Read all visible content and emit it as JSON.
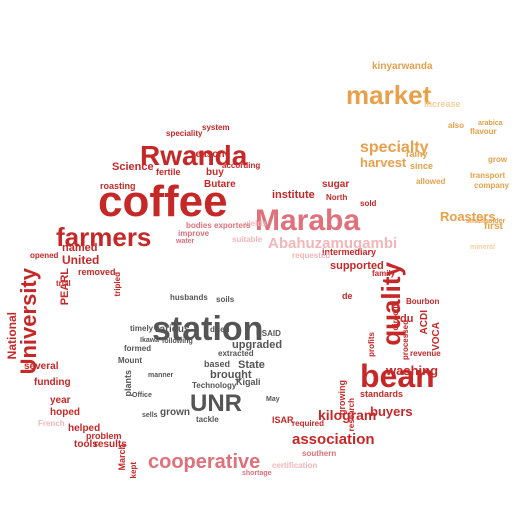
{
  "palette": {
    "red": "#c62828",
    "pink": "#e0707a",
    "lightpink": "#f2b6b8",
    "orange": "#e8a04a",
    "lightorange": "#f6cf9b",
    "gray": "#555555",
    "lightgray": "#8a8a8a"
  },
  "words": [
    {
      "text": "coffee",
      "color": "red"
    },
    {
      "text": "Maraba",
      "color": "pink"
    },
    {
      "text": "Rwanda",
      "color": "red"
    },
    {
      "text": "farmers",
      "color": "red"
    },
    {
      "text": "station",
      "color": "gray"
    },
    {
      "text": "bean",
      "color": "red"
    },
    {
      "text": "quality",
      "color": "red"
    },
    {
      "text": "market",
      "color": "orange"
    },
    {
      "text": "University",
      "color": "red"
    },
    {
      "text": "cooperative",
      "color": "pink"
    },
    {
      "text": "UNR",
      "color": "gray"
    },
    {
      "text": "Abahuzamugambi",
      "color": "lightpink"
    },
    {
      "text": "kinyarwanda",
      "color": "orange"
    },
    {
      "text": "specialty",
      "color": "orange"
    },
    {
      "text": "harvest",
      "color": "orange"
    },
    {
      "text": "Roasters",
      "color": "orange"
    },
    {
      "text": "washing",
      "color": "red"
    },
    {
      "text": "kilogram",
      "color": "red"
    },
    {
      "text": "buyers",
      "color": "red"
    },
    {
      "text": "association",
      "color": "red"
    },
    {
      "text": "supported",
      "color": "red"
    },
    {
      "text": "intermediary",
      "color": "red"
    },
    {
      "text": "institute",
      "color": "red"
    },
    {
      "text": "sugar",
      "color": "red"
    },
    {
      "text": "Science",
      "color": "red"
    },
    {
      "text": "season",
      "color": "red"
    },
    {
      "text": "fertile",
      "color": "red"
    },
    {
      "text": "roasting",
      "color": "red"
    },
    {
      "text": "Butare",
      "color": "red"
    },
    {
      "text": "buy",
      "color": "red"
    },
    {
      "text": "named",
      "color": "red"
    },
    {
      "text": "United",
      "color": "red"
    },
    {
      "text": "National",
      "color": "red"
    },
    {
      "text": "PEARL",
      "color": "red"
    },
    {
      "text": "funding",
      "color": "red"
    },
    {
      "text": "year",
      "color": "red"
    },
    {
      "text": "hoped",
      "color": "red"
    },
    {
      "text": "helped",
      "color": "red"
    },
    {
      "text": "problem",
      "color": "red"
    },
    {
      "text": "tools",
      "color": "red"
    },
    {
      "text": "results",
      "color": "red"
    },
    {
      "text": "several",
      "color": "red"
    },
    {
      "text": "upgraded",
      "color": "gray"
    },
    {
      "text": "brought",
      "color": "gray"
    },
    {
      "text": "State",
      "color": "gray"
    },
    {
      "text": "based",
      "color": "gray"
    },
    {
      "text": "Kigali",
      "color": "gray"
    },
    {
      "text": "Technology",
      "color": "gray"
    },
    {
      "text": "grown",
      "color": "gray"
    },
    {
      "text": "various",
      "color": "gray"
    },
    {
      "text": "timely",
      "color": "gray"
    },
    {
      "text": "husbands",
      "color": "gray"
    },
    {
      "text": "soils",
      "color": "gray"
    },
    {
      "text": "formed",
      "color": "gray"
    },
    {
      "text": "Mount",
      "color": "gray"
    },
    {
      "text": "plants",
      "color": "gray"
    },
    {
      "text": "dried",
      "color": "gray"
    },
    {
      "text": "extracted",
      "color": "gray"
    },
    {
      "text": "USAID",
      "color": "gray"
    },
    {
      "text": "certification",
      "color": "lightpink"
    },
    {
      "text": "southern",
      "color": "pink"
    },
    {
      "text": "required",
      "color": "red"
    },
    {
      "text": "growing",
      "color": "red"
    },
    {
      "text": "research",
      "color": "red"
    },
    {
      "text": "standards",
      "color": "red"
    },
    {
      "text": "Bourbon",
      "color": "red"
    },
    {
      "text": "revenue",
      "color": "red"
    },
    {
      "text": "ACDI",
      "color": "red"
    },
    {
      "text": "VOCA",
      "color": "red"
    },
    {
      "text": "du",
      "color": "red"
    },
    {
      "text": "first",
      "color": "orange"
    },
    {
      "text": "flavour",
      "color": "orange"
    },
    {
      "text": "rainy",
      "color": "orange"
    },
    {
      "text": "since",
      "color": "orange"
    },
    {
      "text": "allowed",
      "color": "orange"
    },
    {
      "text": "increase",
      "color": "lightorange"
    },
    {
      "text": "transport",
      "color": "orange"
    },
    {
      "text": "company",
      "color": "orange"
    },
    {
      "text": "arabica",
      "color": "orange"
    },
    {
      "text": "grow",
      "color": "orange"
    },
    {
      "text": "also",
      "color": "orange"
    },
    {
      "text": "system",
      "color": "red"
    },
    {
      "text": "speciality",
      "color": "red"
    },
    {
      "text": "according",
      "color": "red"
    },
    {
      "text": "improve",
      "color": "pink"
    },
    {
      "text": "suitable",
      "color": "lightpink"
    },
    {
      "text": "yields",
      "color": "lightpink"
    },
    {
      "text": "exporters",
      "color": "pink"
    },
    {
      "text": "bodies",
      "color": "pink"
    },
    {
      "text": "water",
      "color": "pink"
    },
    {
      "text": "North",
      "color": "red"
    },
    {
      "text": "sold",
      "color": "red"
    },
    {
      "text": "processed",
      "color": "red"
    },
    {
      "text": "directly",
      "color": "red"
    },
    {
      "text": "profits",
      "color": "red"
    },
    {
      "text": "family",
      "color": "red"
    },
    {
      "text": "de",
      "color": "red"
    },
    {
      "text": "mineral",
      "color": "lightorange"
    },
    {
      "text": "smallholder",
      "color": "orange"
    },
    {
      "text": "removed",
      "color": "red"
    },
    {
      "text": "opened",
      "color": "red"
    },
    {
      "text": "French",
      "color": "lightpink"
    },
    {
      "text": "March",
      "color": "red"
    },
    {
      "text": "kept",
      "color": "red"
    },
    {
      "text": "ISAR",
      "color": "red"
    },
    {
      "text": "tackle",
      "color": "gray"
    },
    {
      "text": "May",
      "color": "gray"
    },
    {
      "text": "manner",
      "color": "gray"
    },
    {
      "text": "following",
      "color": "gray"
    },
    {
      "text": "Ikawa",
      "color": "gray"
    },
    {
      "text": "Office",
      "color": "gray"
    },
    {
      "text": "trial",
      "color": "red"
    },
    {
      "text": "tripled",
      "color": "red"
    },
    {
      "text": "requested",
      "color": "lightpink"
    },
    {
      "text": "sells",
      "color": "gray"
    },
    {
      "text": "shortage",
      "color": "pink"
    }
  ]
}
